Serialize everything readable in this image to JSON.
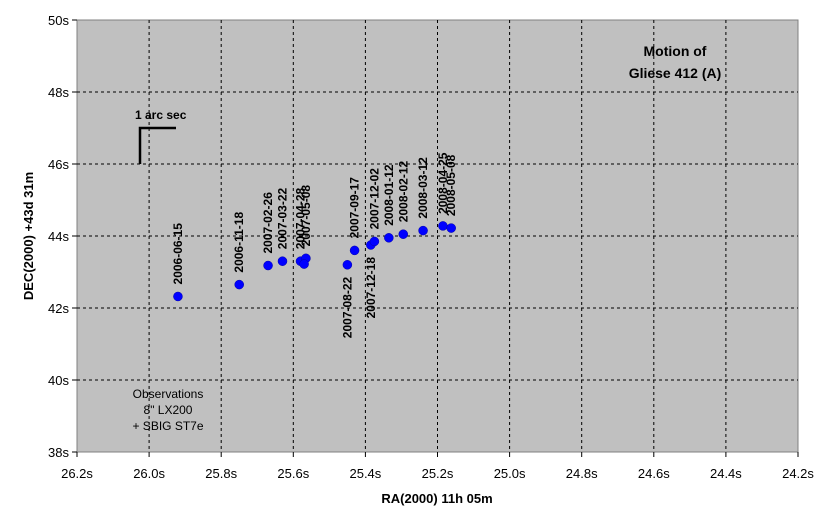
{
  "chart_data": {
    "type": "scatter",
    "title_lines": [
      "Motion of",
      "Gliese 412 (A)"
    ],
    "xlabel": "RA(2000) 11h 05m",
    "ylabel": "DEC(2000) +43d 31m",
    "xlim": [
      26.2,
      24.2
    ],
    "ylim": [
      38,
      50
    ],
    "x_reversed": true,
    "x_ticks": [
      "26.2s",
      "26.0s",
      "25.8s",
      "25.6s",
      "25.4s",
      "25.2s",
      "25.0s",
      "24.8s",
      "24.6s",
      "24.4s",
      "24.2s"
    ],
    "y_ticks": [
      "50s",
      "48s",
      "46s",
      "44s",
      "42s",
      "40s",
      "38s"
    ],
    "grid": true,
    "background": "#c0c0c0",
    "point_color": "#0000ff",
    "scale_bar_label": "1 arc sec",
    "note_lines": [
      "Observations",
      "8\" LX200",
      "+ SBIG ST7e"
    ],
    "points": [
      {
        "date": "2006-06-15",
        "x": 25.92,
        "y": 42.32,
        "label": "above"
      },
      {
        "date": "2006-11-18",
        "x": 25.75,
        "y": 42.65,
        "label": "above"
      },
      {
        "date": "2007-02-26",
        "x": 25.67,
        "y": 43.18,
        "label": "above"
      },
      {
        "date": "2007-03-22",
        "x": 25.63,
        "y": 43.3,
        "label": "above"
      },
      {
        "date": "2007-04-28",
        "x": 25.58,
        "y": 43.3,
        "label": "above"
      },
      {
        "date": "2007-05-08",
        "x": 25.565,
        "y": 43.38,
        "label": "above"
      },
      {
        "date": "2007-05-08",
        "x": 25.57,
        "y": 43.22,
        "label": "none"
      },
      {
        "date": "2007-08-22",
        "x": 25.45,
        "y": 43.2,
        "label": "below"
      },
      {
        "date": "2007-09-17",
        "x": 25.43,
        "y": 43.6,
        "label": "above"
      },
      {
        "date": "2007-12-18",
        "x": 25.385,
        "y": 43.75,
        "label": "below"
      },
      {
        "date": "2007-12-02",
        "x": 25.375,
        "y": 43.85,
        "label": "above"
      },
      {
        "date": "2008-01-12",
        "x": 25.335,
        "y": 43.95,
        "label": "above"
      },
      {
        "date": "2008-02-12",
        "x": 25.295,
        "y": 44.05,
        "label": "above"
      },
      {
        "date": "2008-03-12",
        "x": 25.24,
        "y": 44.15,
        "label": "above"
      },
      {
        "date": "2008-04-25",
        "x": 25.185,
        "y": 44.28,
        "label": "above"
      },
      {
        "date": "2008-05-08",
        "x": 25.162,
        "y": 44.22,
        "label": "above"
      }
    ]
  }
}
